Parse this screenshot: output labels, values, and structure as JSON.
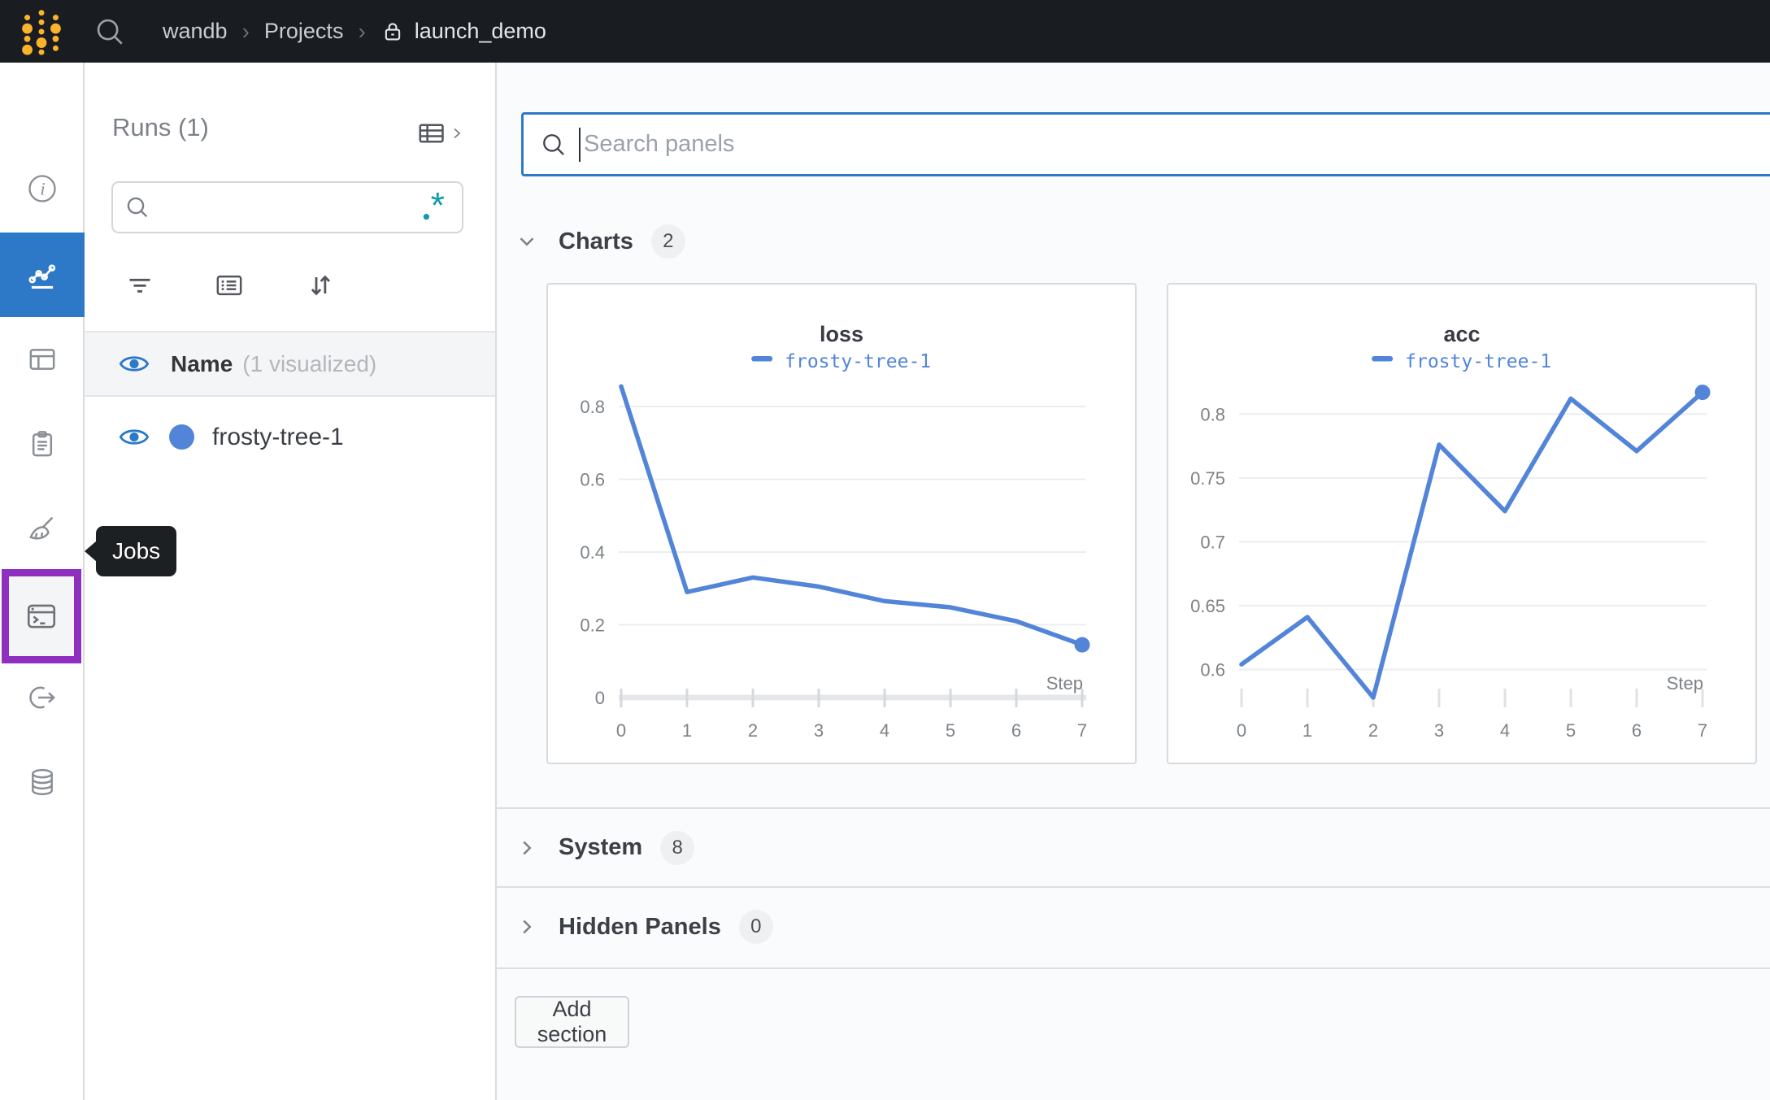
{
  "navbar": {
    "breadcrumb": [
      "wandb",
      "Projects",
      "launch_demo"
    ]
  },
  "sidebar": {
    "tooltip": "Jobs"
  },
  "runs_panel": {
    "title": "Runs (1)",
    "search_value": "",
    "header_name": "Name",
    "header_note": "(1 visualized)",
    "runs": [
      {
        "name": "frosty-tree-1",
        "color": "#5285d8",
        "visible": true
      }
    ]
  },
  "main": {
    "search_placeholder": "Search panels",
    "sections": {
      "charts": {
        "label": "Charts",
        "count": "2"
      },
      "system": {
        "label": "System",
        "count": "8"
      },
      "hidden": {
        "label": "Hidden Panels",
        "count": "0"
      }
    },
    "add_section": "Add section"
  },
  "chart_data": [
    {
      "type": "line",
      "title": "loss",
      "xlabel": "Step",
      "xticks": [
        0,
        1,
        2,
        3,
        4,
        5,
        6,
        7
      ],
      "yticks": [
        0,
        0.2,
        0.4,
        0.6,
        0.8
      ],
      "ylim": [
        0,
        0.867
      ],
      "axis_bar": true,
      "end_dot": true,
      "grid": true,
      "legend_position": "top",
      "series": [
        {
          "name": "frosty-tree-1",
          "color": "#5285d8",
          "x": [
            0,
            1,
            2,
            3,
            4,
            5,
            6,
            7
          ],
          "y": [
            0.855,
            0.29,
            0.33,
            0.305,
            0.265,
            0.248,
            0.21,
            0.145
          ]
        }
      ]
    },
    {
      "type": "line",
      "title": "acc",
      "xlabel": "Step",
      "xticks": [
        0,
        1,
        2,
        3,
        4,
        5,
        6,
        7
      ],
      "yticks": [
        0.6,
        0.65,
        0.7,
        0.75,
        0.8
      ],
      "ylim": [
        0.578,
        0.825
      ],
      "axis_bar": false,
      "end_dot": true,
      "grid": true,
      "legend_position": "top",
      "series": [
        {
          "name": "frosty-tree-1",
          "color": "#5285d8",
          "x": [
            0,
            1,
            2,
            3,
            4,
            5,
            6,
            7
          ],
          "y": [
            0.604,
            0.641,
            0.578,
            0.776,
            0.724,
            0.812,
            0.771,
            0.817
          ]
        }
      ]
    }
  ],
  "colors": {
    "accent_blue": "#2e78c8",
    "series_blue": "#5285d8",
    "highlight_purple": "#8f2fc0",
    "regex_teal": "#0e9aa7",
    "navbar_bg": "#191c21",
    "tooltip_bg": "#1d2023",
    "logo_yellow": "#fcb32c",
    "main_bg": "#fafbfc"
  }
}
